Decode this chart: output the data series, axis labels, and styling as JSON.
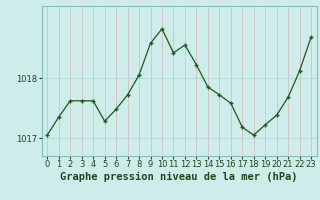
{
  "x": [
    0,
    1,
    2,
    3,
    4,
    5,
    6,
    7,
    8,
    9,
    10,
    11,
    12,
    13,
    14,
    15,
    16,
    17,
    18,
    19,
    20,
    21,
    22,
    23
  ],
  "y": [
    1017.05,
    1017.35,
    1017.62,
    1017.62,
    1017.62,
    1017.28,
    1017.48,
    1017.72,
    1018.05,
    1018.58,
    1018.82,
    1018.42,
    1018.55,
    1018.22,
    1017.85,
    1017.72,
    1017.58,
    1017.18,
    1017.05,
    1017.22,
    1017.38,
    1017.68,
    1018.12,
    1018.68
  ],
  "title": "Graphe pression niveau de la mer (hPa)",
  "ylim": [
    1016.7,
    1019.2
  ],
  "yticks": [
    1017,
    1018
  ],
  "xticks": [
    0,
    1,
    2,
    3,
    4,
    5,
    6,
    7,
    8,
    9,
    10,
    11,
    12,
    13,
    14,
    15,
    16,
    17,
    18,
    19,
    20,
    21,
    22,
    23
  ],
  "line_color": "#1a5c1a",
  "marker_color": "#1a5c1a",
  "bg_color": "#ceecea",
  "grid_color": "#a8d8d4",
  "axis_color": "#88bbbb",
  "title_color": "#1a4a1a",
  "title_fontsize": 7.5,
  "tick_fontsize": 6.0,
  "xlim_left": -0.5,
  "xlim_right": 23.5
}
